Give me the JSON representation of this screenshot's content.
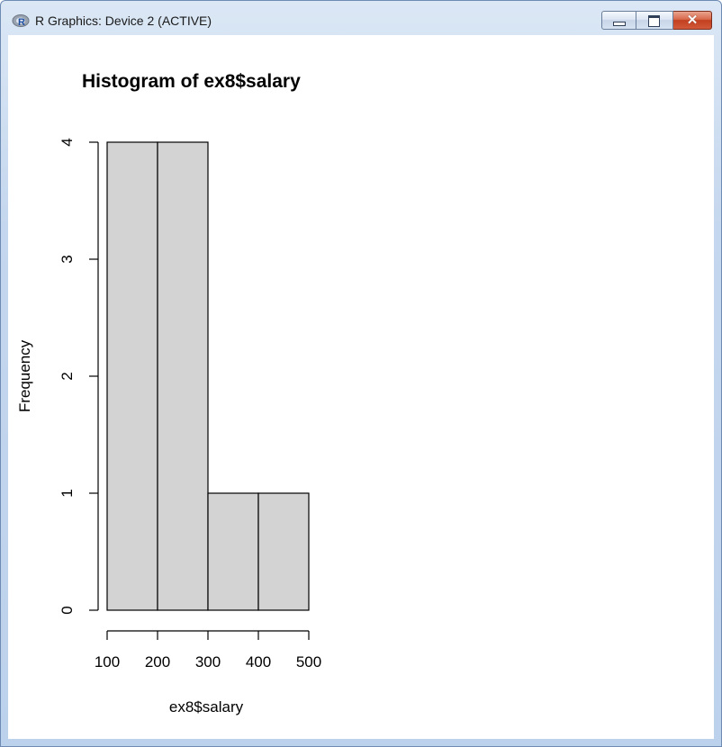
{
  "window": {
    "title": "R Graphics: Device 2 (ACTIVE)",
    "controls": {
      "minimize": "minimize",
      "maximize": "maximize",
      "close": "✕"
    }
  },
  "chart_data": {
    "type": "bar",
    "title": "Histogram of ex8$salary",
    "xlabel": "ex8$salary",
    "ylabel": "Frequency",
    "bins": [
      {
        "from": 100,
        "to": 200,
        "count": 4
      },
      {
        "from": 200,
        "to": 300,
        "count": 4
      },
      {
        "from": 300,
        "to": 400,
        "count": 1
      },
      {
        "from": 400,
        "to": 500,
        "count": 1
      }
    ],
    "xlim": [
      100,
      500
    ],
    "ylim": [
      0,
      4
    ],
    "x_ticks": [
      100,
      200,
      300,
      400,
      500
    ],
    "y_ticks": [
      0,
      1,
      2,
      3,
      4
    ],
    "bar_fill": "#d3d3d3",
    "bar_stroke": "#000000",
    "grid": false,
    "legend": "none"
  }
}
